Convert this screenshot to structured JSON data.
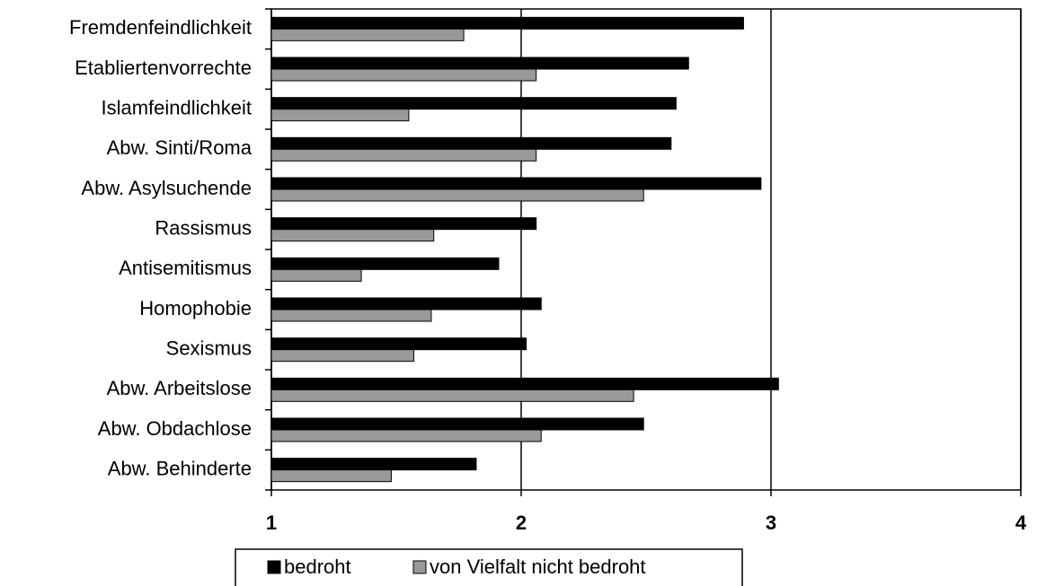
{
  "chart_data": {
    "type": "bar",
    "orientation": "horizontal",
    "categories": [
      "Fremdenfeindlichkeit",
      "Etabliertenvorrechte",
      "Islamfeindlichkeit",
      "Abw. Sinti/Roma",
      "Abw. Asylsuchende",
      "Rassismus",
      "Antisemitismus",
      "Homophobie",
      "Sexismus",
      "Abw. Arbeitslose",
      "Abw. Obdachlose",
      "Abw. Behinderte"
    ],
    "series": [
      {
        "name": "bedroht",
        "color": "#000000",
        "values": [
          2.89,
          2.67,
          2.62,
          2.6,
          2.96,
          2.06,
          1.91,
          2.08,
          2.02,
          3.03,
          2.49,
          1.82
        ]
      },
      {
        "name": "von Vielfalt nicht bedroht",
        "color": "#999999",
        "values": [
          1.77,
          2.06,
          1.55,
          2.06,
          2.49,
          1.65,
          1.36,
          1.64,
          1.57,
          2.45,
          2.08,
          1.48
        ]
      }
    ],
    "xlim": [
      1,
      4
    ],
    "xticks": [
      1,
      2,
      3,
      4
    ],
    "grid": true
  }
}
